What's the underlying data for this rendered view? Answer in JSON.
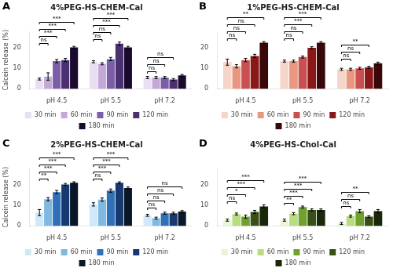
{
  "chart_data": [
    {
      "type": "bar",
      "panel_label": "A",
      "title": "4%PEG-HS-CHEM-Cal",
      "ylabel": "Calcein release (%)",
      "categories": [
        "pH 4.5",
        "pH 5.5",
        "pH 7.2"
      ],
      "series": [
        {
          "name": "30 min",
          "color": "#e8e0f0",
          "values": [
            4.8,
            13.2,
            5.5
          ],
          "errors": [
            0.5,
            0.5,
            0.5
          ]
        },
        {
          "name": "60 min",
          "color": "#c4a8d8",
          "values": [
            6.0,
            12.2,
            5.5
          ],
          "errors": [
            1.8,
            0.5,
            0.5
          ]
        },
        {
          "name": "90 min",
          "color": "#7b5ea7",
          "values": [
            13.5,
            14.5,
            5.5
          ],
          "errors": [
            0.8,
            0.8,
            0.5
          ]
        },
        {
          "name": "120 min",
          "color": "#4a3070",
          "values": [
            14.0,
            22.0,
            4.5
          ],
          "errors": [
            0.8,
            0.8,
            0.5
          ]
        },
        {
          "name": "180 min",
          "color": "#1a0a2e",
          "values": [
            20.2,
            20.2,
            6.5
          ],
          "errors": [
            0.5,
            0.5,
            0.5
          ]
        }
      ],
      "ylim": [
        0,
        28
      ],
      "yticks": [
        0,
        10,
        20
      ],
      "grid": false,
      "legend": "bottom",
      "annotations": [
        {
          "category": "pH 4.5",
          "series": "60 min",
          "text": "ns"
        },
        {
          "category": "pH 4.5",
          "series": "90 min",
          "text": "***"
        },
        {
          "category": "pH 4.5",
          "series": "120 min",
          "text": "***"
        },
        {
          "category": "pH 4.5",
          "series": "180 min",
          "text": "***"
        },
        {
          "category": "pH 5.5",
          "series": "60 min",
          "text": "ns"
        },
        {
          "category": "pH 5.5",
          "series": "90 min",
          "text": "ns"
        },
        {
          "category": "pH 5.5",
          "series": "120 min",
          "text": "***"
        },
        {
          "category": "pH 5.5",
          "series": "180 min",
          "text": "***"
        },
        {
          "category": "pH 7.2",
          "series": "60 min",
          "text": "ns"
        },
        {
          "category": "pH 7.2",
          "series": "90 min",
          "text": "ns"
        },
        {
          "category": "pH 7.2",
          "series": "120 min",
          "text": "ns"
        }
      ]
    },
    {
      "type": "bar",
      "panel_label": "B",
      "title": "1%PEG-HS-CHEM-Cal",
      "categories": [
        "pH 4.5",
        "pH 5.5",
        "pH 7.2"
      ],
      "series": [
        {
          "name": "30 min",
          "color": "#f5d5c8",
          "values": [
            13.0,
            13.5,
            9.5
          ],
          "errors": [
            1.5,
            0.5,
            0.5
          ]
        },
        {
          "name": "60 min",
          "color": "#e89880",
          "values": [
            11.0,
            13.5,
            9.5
          ],
          "errors": [
            0.8,
            0.5,
            0.5
          ]
        },
        {
          "name": "90 min",
          "color": "#c85050",
          "values": [
            14.0,
            15.5,
            10.0
          ],
          "errors": [
            0.8,
            0.5,
            0.5
          ]
        },
        {
          "name": "120 min",
          "color": "#8b1818",
          "values": [
            16.0,
            20.0,
            10.5
          ],
          "errors": [
            0.8,
            0.5,
            0.5
          ]
        },
        {
          "name": "180 min",
          "color": "#3a0808",
          "values": [
            22.5,
            22.5,
            12.5
          ],
          "errors": [
            0.5,
            0.5,
            0.5
          ]
        }
      ],
      "ylim": [
        0,
        28
      ],
      "yticks": [
        0,
        10,
        20
      ],
      "grid": false,
      "legend": "bottom",
      "annotations": [
        {
          "category": "pH 4.5",
          "series": "60 min",
          "text": "ns"
        },
        {
          "category": "pH 4.5",
          "series": "90 min",
          "text": "ns"
        },
        {
          "category": "pH 4.5",
          "series": "120 min",
          "text": "ns"
        },
        {
          "category": "pH 4.5",
          "series": "180 min",
          "text": "**"
        },
        {
          "category": "pH 5.5",
          "series": "60 min",
          "text": "ns"
        },
        {
          "category": "pH 5.5",
          "series": "90 min",
          "text": "ns"
        },
        {
          "category": "pH 5.5",
          "series": "120 min",
          "text": "***"
        },
        {
          "category": "pH 5.5",
          "series": "180 min",
          "text": "***"
        },
        {
          "category": "pH 7.2",
          "series": "60 min",
          "text": "ns"
        },
        {
          "category": "pH 7.2",
          "series": "90 min",
          "text": "ns"
        },
        {
          "category": "pH 7.2",
          "series": "120 min",
          "text": "**"
        }
      ]
    },
    {
      "type": "bar",
      "panel_label": "C",
      "title": "2%PEG-HS-CHEM-Cal",
      "ylabel": "Calcein release (%)",
      "categories": [
        "pH 4.5",
        "pH 5.5",
        "pH 7.2"
      ],
      "series": [
        {
          "name": "30 min",
          "color": "#d0e8f8",
          "values": [
            6.5,
            10.5,
            5.2
          ],
          "errors": [
            1.5,
            0.8,
            0.5
          ]
        },
        {
          "name": "60 min",
          "color": "#80b8e0",
          "values": [
            13.0,
            12.8,
            3.8
          ],
          "errors": [
            0.8,
            0.8,
            0.5
          ]
        },
        {
          "name": "90 min",
          "color": "#3070b8",
          "values": [
            16.5,
            17.2,
            6.2
          ],
          "errors": [
            0.8,
            0.8,
            0.5
          ]
        },
        {
          "name": "120 min",
          "color": "#183870",
          "values": [
            20.2,
            21.0,
            6.2
          ],
          "errors": [
            0.5,
            0.5,
            0.5
          ]
        },
        {
          "name": "180 min",
          "color": "#081828",
          "values": [
            21.0,
            18.5,
            7.0
          ],
          "errors": [
            0.5,
            0.5,
            0.5
          ]
        }
      ],
      "ylim": [
        0,
        28
      ],
      "yticks": [
        0,
        10,
        20
      ],
      "grid": false,
      "legend": "bottom",
      "annotations": [
        {
          "category": "pH 4.5",
          "series": "60 min",
          "text": "**"
        },
        {
          "category": "pH 4.5",
          "series": "90 min",
          "text": "***"
        },
        {
          "category": "pH 4.5",
          "series": "120 min",
          "text": "***"
        },
        {
          "category": "pH 4.5",
          "series": "180 min",
          "text": "***"
        },
        {
          "category": "pH 5.5",
          "series": "60 min",
          "text": "ns"
        },
        {
          "category": "pH 5.5",
          "series": "90 min",
          "text": "***"
        },
        {
          "category": "pH 5.5",
          "series": "120 min",
          "text": "***"
        },
        {
          "category": "pH 5.5",
          "series": "180 min",
          "text": "***"
        },
        {
          "category": "pH 7.2",
          "series": "60 min",
          "text": "ns"
        },
        {
          "category": "pH 7.2",
          "series": "90 min",
          "text": "ns"
        },
        {
          "category": "pH 7.2",
          "series": "120 min",
          "text": "ns"
        },
        {
          "category": "pH 7.2",
          "series": "180 min",
          "text": "ns"
        }
      ]
    },
    {
      "type": "bar",
      "panel_label": "D",
      "title": "4%PEG-HS-Chol-Cal",
      "categories": [
        "pH 4.5",
        "pH 5.5",
        "pH 7.2"
      ],
      "series": [
        {
          "name": "30 min",
          "color": "#e8f5d8",
          "values": [
            2.8,
            2.8,
            1.2
          ],
          "errors": [
            0.5,
            0.5,
            0.5
          ]
        },
        {
          "name": "60 min",
          "color": "#b8dc80",
          "values": [
            5.8,
            6.0,
            4.8
          ],
          "errors": [
            0.5,
            0.5,
            0.5
          ]
        },
        {
          "name": "90 min",
          "color": "#70a030",
          "values": [
            4.5,
            9.2,
            7.2
          ],
          "errors": [
            0.8,
            0.5,
            0.8
          ]
        },
        {
          "name": "120 min",
          "color": "#385018",
          "values": [
            6.8,
            7.8,
            4.5
          ],
          "errors": [
            0.8,
            0.5,
            0.5
          ]
        },
        {
          "name": "180 min",
          "color": "#182808",
          "values": [
            9.5,
            7.8,
            7.2
          ],
          "errors": [
            0.8,
            0.5,
            0.8
          ]
        }
      ],
      "ylim": [
        0,
        28
      ],
      "yticks": [
        0,
        10,
        20
      ],
      "grid": false,
      "legend": "bottom",
      "annotations": [
        {
          "category": "pH 4.5",
          "series": "60 min",
          "text": "ns"
        },
        {
          "category": "pH 4.5",
          "series": "90 min",
          "text": "*"
        },
        {
          "category": "pH 4.5",
          "series": "120 min",
          "text": "***"
        },
        {
          "category": "pH 4.5",
          "series": "180 min",
          "text": "***"
        },
        {
          "category": "pH 5.5",
          "series": "60 min",
          "text": "**"
        },
        {
          "category": "pH 5.5",
          "series": "90 min",
          "text": "***"
        },
        {
          "category": "pH 5.5",
          "series": "120 min",
          "text": "***"
        },
        {
          "category": "pH 5.5",
          "series": "180 min",
          "text": "***"
        },
        {
          "category": "pH 7.2",
          "series": "60 min",
          "text": "ns"
        },
        {
          "category": "pH 7.2",
          "series": "90 min",
          "text": "ns"
        },
        {
          "category": "pH 7.2",
          "series": "120 min",
          "text": "**"
        }
      ]
    }
  ]
}
